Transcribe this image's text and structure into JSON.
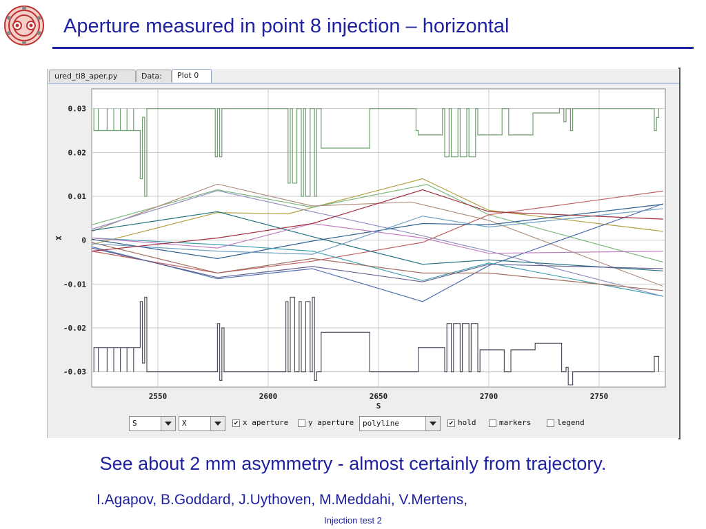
{
  "slide": {
    "title": "Aperture measured in point 8 injection – horizontal",
    "caption": "See about 2 mm asymmetry - almost certainly from trajectory.",
    "authors": "I.Agapov, B.Goddard, J.Uythoven, M.Meddahi, V.Mertens,",
    "footer": "Injection test 2",
    "title_color": "#1f22a0",
    "logo": "lhc-dipole-cross-section-logo"
  },
  "app": {
    "tabs": [
      {
        "label": "ured_ti8_aper.py",
        "active": false
      },
      {
        "label": "Data:",
        "active": false
      },
      {
        "label": "Plot 0",
        "active": true
      }
    ],
    "controls": {
      "x_select": "S",
      "y_select": "X",
      "x_aperture": {
        "label": "x aperture",
        "checked": true
      },
      "y_aperture": {
        "label": "y aperture",
        "checked": false
      },
      "style_select": "polyline",
      "hold": {
        "label": "hold",
        "checked": true
      },
      "markers": {
        "label": "markers",
        "checked": false
      },
      "legend": {
        "label": "legend",
        "checked": false
      }
    }
  },
  "chart_data": {
    "type": "line",
    "xlabel": "S",
    "ylabel": "X",
    "xlim": [
      2520,
      2780
    ],
    "ylim": [
      -0.0335,
      0.0345
    ],
    "xticks": [
      2550,
      2600,
      2650,
      2700,
      2750
    ],
    "xtick_labels": [
      "2550",
      "2600",
      "2650",
      "2700",
      "2750"
    ],
    "yticks": [
      0.03,
      0.02,
      0.01,
      0,
      -0.01,
      -0.02,
      -0.03
    ],
    "ytick_labels": [
      "0.03",
      "0.02",
      "0.01",
      "0",
      "-0.01",
      "-0.02",
      "-0.03"
    ],
    "grid": true,
    "aperture": {
      "upper_color": "#6f9f6f",
      "lower_color": "#505060",
      "upper": [
        [
          2521,
          0.03
        ],
        [
          2521,
          0.025
        ],
        [
          2523,
          0.025
        ],
        [
          2523,
          0.03
        ],
        [
          2523,
          0.025
        ],
        [
          2527,
          0.025
        ],
        [
          2527,
          0.03
        ],
        [
          2527,
          0.025
        ],
        [
          2530,
          0.025
        ],
        [
          2530,
          0.03
        ],
        [
          2530,
          0.025
        ],
        [
          2533,
          0.025
        ],
        [
          2533,
          0.03
        ],
        [
          2533,
          0.025
        ],
        [
          2536,
          0.025
        ],
        [
          2536,
          0.03
        ],
        [
          2536,
          0.025
        ],
        [
          2539,
          0.025
        ],
        [
          2539,
          0.03
        ],
        [
          2539,
          0.025
        ],
        [
          2542,
          0.025
        ],
        [
          2542,
          0.014
        ],
        [
          2543,
          0.014
        ],
        [
          2543,
          0.028
        ],
        [
          2544,
          0.028
        ],
        [
          2544,
          0.01
        ],
        [
          2545,
          0.01
        ],
        [
          2545,
          0.03
        ],
        [
          2576,
          0.03
        ],
        [
          2576,
          0.019
        ],
        [
          2577,
          0.019
        ],
        [
          2577,
          0.03
        ],
        [
          2578,
          0.03
        ],
        [
          2578,
          0.019
        ],
        [
          2579,
          0.019
        ],
        [
          2579,
          0.03
        ],
        [
          2579.5,
          0.03
        ],
        [
          2579.5,
          0.03
        ],
        [
          2609,
          0.03
        ],
        [
          2609,
          0.013
        ],
        [
          2610,
          0.013
        ],
        [
          2610,
          0.03
        ],
        [
          2611,
          0.03
        ],
        [
          2611,
          0.013
        ],
        [
          2613,
          0.013
        ],
        [
          2613,
          0.03
        ],
        [
          2615,
          0.03
        ],
        [
          2615,
          0.01
        ],
        [
          2616,
          0.01
        ],
        [
          2616,
          0.03
        ],
        [
          2617,
          0.03
        ],
        [
          2617,
          0.01
        ],
        [
          2619,
          0.01
        ],
        [
          2619,
          0.03
        ],
        [
          2621,
          0.03
        ],
        [
          2621,
          0.01
        ],
        [
          2622,
          0.01
        ],
        [
          2622,
          0.03
        ],
        [
          2624,
          0.03
        ],
        [
          2624,
          0.021
        ],
        [
          2646,
          0.021
        ],
        [
          2646,
          0.03
        ],
        [
          2667,
          0.03
        ],
        [
          2667,
          0.025
        ],
        [
          2668,
          0.025
        ],
        [
          2668,
          0.024
        ],
        [
          2679,
          0.024
        ],
        [
          2679,
          0.03
        ],
        [
          2680,
          0.03
        ],
        [
          2680,
          0.019
        ],
        [
          2682,
          0.019
        ],
        [
          2682,
          0.03
        ],
        [
          2683,
          0.03
        ],
        [
          2683,
          0.019
        ],
        [
          2686,
          0.019
        ],
        [
          2686,
          0.03
        ],
        [
          2687,
          0.03
        ],
        [
          2687,
          0.019
        ],
        [
          2690,
          0.019
        ],
        [
          2690,
          0.03
        ],
        [
          2691,
          0.03
        ],
        [
          2691,
          0.019
        ],
        [
          2694,
          0.019
        ],
        [
          2694,
          0.03
        ],
        [
          2695,
          0.03
        ],
        [
          2695,
          0.024
        ],
        [
          2706,
          0.024
        ],
        [
          2706,
          0.03
        ],
        [
          2709,
          0.03
        ],
        [
          2709,
          0.024
        ],
        [
          2720,
          0.024
        ],
        [
          2720,
          0.029
        ],
        [
          2732,
          0.029
        ],
        [
          2732,
          0.03
        ],
        [
          2734,
          0.03
        ],
        [
          2734,
          0.027
        ],
        [
          2735,
          0.027
        ],
        [
          2735,
          0.03
        ],
        [
          2737,
          0.03
        ],
        [
          2737,
          0.025
        ],
        [
          2738,
          0.025
        ],
        [
          2738,
          0.03
        ],
        [
          2775,
          0.03
        ],
        [
          2775,
          0.025
        ],
        [
          2776,
          0.025
        ],
        [
          2776,
          0.028
        ],
        [
          2777,
          0.028
        ],
        [
          2777,
          0.03
        ]
      ],
      "lower": [
        [
          2521,
          -0.03
        ],
        [
          2521,
          -0.0245
        ],
        [
          2523,
          -0.0245
        ],
        [
          2523,
          -0.03
        ],
        [
          2523,
          -0.0245
        ],
        [
          2527,
          -0.0245
        ],
        [
          2527,
          -0.03
        ],
        [
          2527,
          -0.0245
        ],
        [
          2530,
          -0.0245
        ],
        [
          2530,
          -0.03
        ],
        [
          2530,
          -0.0245
        ],
        [
          2533,
          -0.0245
        ],
        [
          2533,
          -0.03
        ],
        [
          2533,
          -0.0245
        ],
        [
          2536,
          -0.0245
        ],
        [
          2536,
          -0.03
        ],
        [
          2536,
          -0.0245
        ],
        [
          2539,
          -0.0245
        ],
        [
          2539,
          -0.03
        ],
        [
          2539,
          -0.0245
        ],
        [
          2542,
          -0.0245
        ],
        [
          2542,
          -0.014
        ],
        [
          2543,
          -0.014
        ],
        [
          2543,
          -0.028
        ],
        [
          2544,
          -0.028
        ],
        [
          2544,
          -0.013
        ],
        [
          2545,
          -0.013
        ],
        [
          2545,
          -0.03
        ],
        [
          2577,
          -0.03
        ],
        [
          2577,
          -0.019
        ],
        [
          2578,
          -0.019
        ],
        [
          2578,
          -0.032
        ],
        [
          2579,
          -0.032
        ],
        [
          2579,
          -0.02
        ],
        [
          2580,
          -0.02
        ],
        [
          2580,
          -0.03
        ],
        [
          2608,
          -0.03
        ],
        [
          2608,
          -0.014
        ],
        [
          2609,
          -0.014
        ],
        [
          2609,
          -0.03
        ],
        [
          2610,
          -0.03
        ],
        [
          2610,
          -0.013
        ],
        [
          2612,
          -0.013
        ],
        [
          2612,
          -0.03
        ],
        [
          2614,
          -0.03
        ],
        [
          2614,
          -0.014
        ],
        [
          2615,
          -0.014
        ],
        [
          2615,
          -0.03
        ],
        [
          2617,
          -0.03
        ],
        [
          2617,
          -0.014
        ],
        [
          2619,
          -0.014
        ],
        [
          2619,
          -0.03
        ],
        [
          2620,
          -0.03
        ],
        [
          2620,
          -0.013
        ],
        [
          2621,
          -0.013
        ],
        [
          2621,
          -0.032
        ],
        [
          2622,
          -0.032
        ],
        [
          2622,
          -0.03
        ],
        [
          2624,
          -0.03
        ],
        [
          2624,
          -0.021
        ],
        [
          2646,
          -0.021
        ],
        [
          2646,
          -0.03
        ],
        [
          2668,
          -0.03
        ],
        [
          2668,
          -0.0245
        ],
        [
          2680,
          -0.0245
        ],
        [
          2680,
          -0.03
        ],
        [
          2681,
          -0.03
        ],
        [
          2681,
          -0.019
        ],
        [
          2683,
          -0.019
        ],
        [
          2683,
          -0.03
        ],
        [
          2684,
          -0.03
        ],
        [
          2684,
          -0.019
        ],
        [
          2687,
          -0.019
        ],
        [
          2687,
          -0.03
        ],
        [
          2688,
          -0.03
        ],
        [
          2688,
          -0.019
        ],
        [
          2691,
          -0.019
        ],
        [
          2691,
          -0.03
        ],
        [
          2692,
          -0.03
        ],
        [
          2692,
          -0.019
        ],
        [
          2695,
          -0.019
        ],
        [
          2695,
          -0.03
        ],
        [
          2696,
          -0.03
        ],
        [
          2696,
          -0.025
        ],
        [
          2707,
          -0.025
        ],
        [
          2707,
          -0.03
        ],
        [
          2710,
          -0.03
        ],
        [
          2710,
          -0.025
        ],
        [
          2721,
          -0.025
        ],
        [
          2721,
          -0.0235
        ],
        [
          2733,
          -0.0235
        ],
        [
          2733,
          -0.03
        ],
        [
          2735,
          -0.03
        ],
        [
          2735,
          -0.029
        ],
        [
          2736,
          -0.029
        ],
        [
          2736,
          -0.033
        ],
        [
          2738,
          -0.033
        ],
        [
          2738,
          -0.03
        ],
        [
          2775,
          -0.03
        ],
        [
          2775,
          -0.0265
        ],
        [
          2777,
          -0.0265
        ],
        [
          2777,
          -0.03
        ]
      ]
    },
    "series": [
      {
        "color": "#b0a040",
        "points": [
          [
            2520,
            -0.001
          ],
          [
            2577,
            0.0063
          ],
          [
            2609,
            0.006
          ],
          [
            2670,
            0.014
          ],
          [
            2700,
            0.0068
          ],
          [
            2779,
            0.002
          ]
        ]
      },
      {
        "color": "#80b880",
        "points": [
          [
            2520,
            0.0035
          ],
          [
            2577,
            0.0115
          ],
          [
            2620,
            0.0075
          ],
          [
            2672,
            0.0127
          ],
          [
            2700,
            0.0058
          ],
          [
            2779,
            -0.005
          ]
        ]
      },
      {
        "color": "#b09080",
        "points": [
          [
            2520,
            0.002
          ],
          [
            2577,
            0.0128
          ],
          [
            2620,
            0.0078
          ],
          [
            2665,
            0.0087
          ],
          [
            2700,
            0.0045
          ],
          [
            2779,
            -0.0105
          ]
        ]
      },
      {
        "color": "#9090c0",
        "points": [
          [
            2520,
            0.0025
          ],
          [
            2577,
            0.0113
          ],
          [
            2620,
            0.0065
          ],
          [
            2670,
            0.001
          ],
          [
            2700,
            -0.0025
          ],
          [
            2779,
            -0.0128
          ]
        ]
      },
      {
        "color": "#c06060",
        "points": [
          [
            2520,
            -0.0025
          ],
          [
            2577,
            -0.0075
          ],
          [
            2620,
            -0.0048
          ],
          [
            2670,
            -0.0005
          ],
          [
            2700,
            0.0058
          ],
          [
            2779,
            0.0112
          ]
        ]
      },
      {
        "color": "#5070b0",
        "points": [
          [
            2520,
            -0.0015
          ],
          [
            2577,
            -0.0088
          ],
          [
            2620,
            -0.0065
          ],
          [
            2670,
            -0.014
          ],
          [
            2700,
            -0.0058
          ],
          [
            2779,
            0.0083
          ]
        ]
      },
      {
        "color": "#207080",
        "points": [
          [
            2520,
            0.0022
          ],
          [
            2577,
            0.0065
          ],
          [
            2620,
            0.0008
          ],
          [
            2670,
            -0.0055
          ],
          [
            2700,
            -0.0045
          ],
          [
            2779,
            -0.007
          ]
        ]
      },
      {
        "color": "#306090",
        "points": [
          [
            2520,
            0.0002
          ],
          [
            2577,
            -0.0042
          ],
          [
            2620,
            -0.0002
          ],
          [
            2670,
            0.0038
          ],
          [
            2700,
            0.0035
          ],
          [
            2779,
            0.0082
          ]
        ]
      },
      {
        "color": "#40a0b0",
        "points": [
          [
            2520,
            0.0005
          ],
          [
            2577,
            -0.001
          ],
          [
            2620,
            -0.0025
          ],
          [
            2670,
            -0.0092
          ],
          [
            2700,
            -0.0052
          ],
          [
            2779,
            -0.0128
          ]
        ]
      },
      {
        "color": "#c080c0",
        "points": [
          [
            2520,
            0.0005
          ],
          [
            2577,
            -0.0018
          ],
          [
            2620,
            0.0038
          ],
          [
            2670,
            0.0005
          ],
          [
            2700,
            -0.003
          ],
          [
            2779,
            -0.0025
          ]
        ]
      },
      {
        "color": "#a07060",
        "points": [
          [
            2520,
            -0.0005
          ],
          [
            2577,
            -0.0075
          ],
          [
            2620,
            -0.0042
          ],
          [
            2670,
            -0.0075
          ],
          [
            2700,
            -0.0075
          ],
          [
            2779,
            -0.0115
          ]
        ]
      },
      {
        "color": "#606090",
        "points": [
          [
            2520,
            -0.0018
          ],
          [
            2577,
            -0.0085
          ],
          [
            2620,
            -0.006
          ],
          [
            2670,
            -0.0095
          ],
          [
            2700,
            -0.0055
          ],
          [
            2779,
            -0.0065
          ]
        ]
      },
      {
        "color": "#70a0c0",
        "points": [
          [
            2520,
            -0.0008
          ],
          [
            2577,
            -0.0025
          ],
          [
            2620,
            -0.0032
          ],
          [
            2670,
            0.0055
          ],
          [
            2700,
            0.003
          ],
          [
            2779,
            0.0072
          ]
        ]
      },
      {
        "color": "#a03040",
        "points": [
          [
            2520,
            -0.0025
          ],
          [
            2577,
            0.0005
          ],
          [
            2620,
            0.0038
          ],
          [
            2670,
            0.0115
          ],
          [
            2700,
            0.0065
          ],
          [
            2779,
            0.0048
          ]
        ]
      }
    ]
  }
}
